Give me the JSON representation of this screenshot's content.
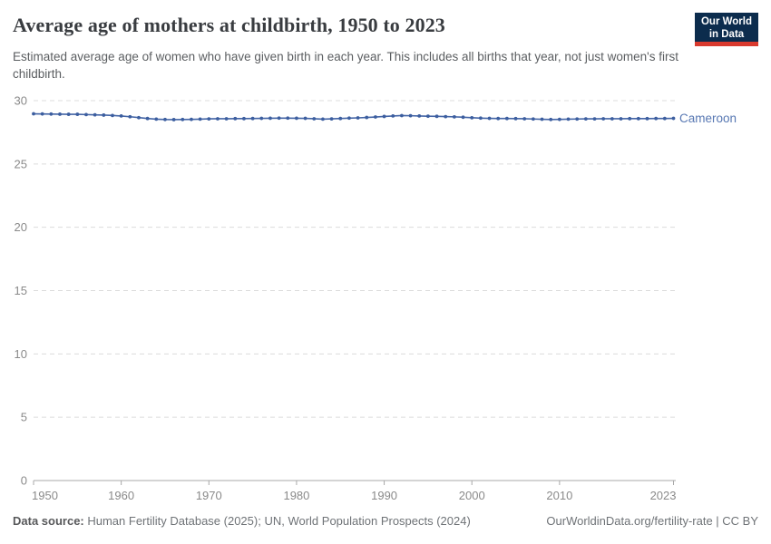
{
  "header": {
    "title": "Average age of mothers at childbirth, 1950 to 2023",
    "subtitle": "Estimated average age of women who have given birth in each year. This includes all births that year, not just women's first childbirth.",
    "logo": {
      "line1": "Our World",
      "line2": "in Data",
      "bg_color": "#0c2c4d",
      "bar_color": "#d93a2e"
    }
  },
  "chart_data": {
    "type": "line",
    "title": "Average age of mothers at childbirth, 1950 to 2023",
    "xlabel": "",
    "ylabel": "",
    "xlim": [
      1950,
      2023
    ],
    "ylim": [
      0,
      30
    ],
    "x_ticks": [
      1950,
      1960,
      1970,
      1980,
      1990,
      2000,
      2010,
      2023
    ],
    "y_ticks": [
      0,
      5,
      10,
      15,
      20,
      25,
      30
    ],
    "grid": "horizontal-dashed",
    "gridline_color": "#dcdcdc",
    "axis_color": "#a8a8a8",
    "tick_label_color": "#8a8a8a",
    "legend_position": "end-of-line-label",
    "series": [
      {
        "name": "Cameroon",
        "color": "#4465a6",
        "dot_color": "#3c5e9f",
        "label_color": "#5878b3",
        "x": [
          1950,
          1951,
          1952,
          1953,
          1954,
          1955,
          1956,
          1957,
          1958,
          1959,
          1960,
          1961,
          1962,
          1963,
          1964,
          1965,
          1966,
          1967,
          1968,
          1969,
          1970,
          1971,
          1972,
          1973,
          1974,
          1975,
          1976,
          1977,
          1978,
          1979,
          1980,
          1981,
          1982,
          1983,
          1984,
          1985,
          1986,
          1987,
          1988,
          1989,
          1990,
          1991,
          1992,
          1993,
          1994,
          1995,
          1996,
          1997,
          1998,
          1999,
          2000,
          2001,
          2002,
          2003,
          2004,
          2005,
          2006,
          2007,
          2008,
          2009,
          2010,
          2011,
          2012,
          2013,
          2014,
          2015,
          2016,
          2017,
          2018,
          2019,
          2020,
          2021,
          2022,
          2023
        ],
        "values": [
          28.96,
          28.95,
          28.94,
          28.93,
          28.92,
          28.92,
          28.9,
          28.88,
          28.86,
          28.83,
          28.79,
          28.73,
          28.66,
          28.59,
          28.54,
          28.51,
          28.5,
          28.51,
          28.52,
          28.54,
          28.56,
          28.57,
          28.57,
          28.58,
          28.58,
          28.59,
          28.6,
          28.61,
          28.62,
          28.62,
          28.61,
          28.6,
          28.57,
          28.54,
          28.56,
          28.59,
          28.62,
          28.64,
          28.67,
          28.71,
          28.75,
          28.79,
          28.82,
          28.81,
          28.79,
          28.77,
          28.76,
          28.74,
          28.72,
          28.69,
          28.65,
          28.62,
          28.6,
          28.59,
          28.59,
          28.58,
          28.57,
          28.55,
          28.53,
          28.51,
          28.52,
          28.54,
          28.55,
          28.56,
          28.56,
          28.57,
          28.57,
          28.57,
          28.58,
          28.58,
          28.58,
          28.59,
          28.59,
          28.6
        ]
      }
    ]
  },
  "footer": {
    "source_label": "Data source:",
    "source_text": " Human Fertility Database (2025); UN, World Population Prospects (2024)",
    "link_text": "OurWorldinData.org/fertility-rate | CC BY"
  }
}
